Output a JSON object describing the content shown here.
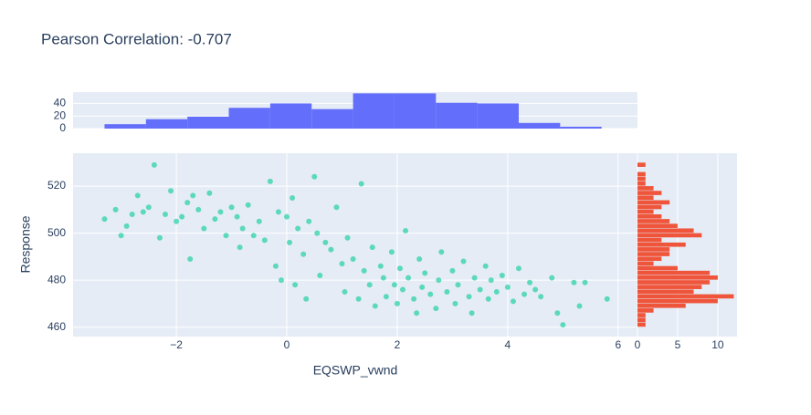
{
  "chart_data": [
    {
      "type": "histogram",
      "orientation": "vertical",
      "color": "#636efa",
      "bins": [
        -3.3,
        -2.55,
        -1.8,
        -1.05,
        -0.3,
        0.45,
        1.2,
        1.95,
        2.7,
        3.45,
        4.2,
        4.95,
        5.7
      ],
      "values": [
        7,
        15,
        19,
        33,
        40,
        31,
        56,
        56,
        41,
        40,
        9,
        3
      ],
      "xlim": [
        -3.87,
        6.35
      ],
      "ylim": [
        0,
        58
      ],
      "yticks": [
        0,
        20,
        40
      ],
      "grid": true
    },
    {
      "type": "scatter",
      "title": "Pearson Correlation: -0.707",
      "xlabel": "EQSWP_vwnd",
      "ylabel": "Response",
      "color": "#00cc96",
      "x": [
        -3.3,
        -3.1,
        -3.0,
        -2.9,
        -2.8,
        -2.7,
        -2.6,
        -2.5,
        -2.4,
        -2.3,
        -2.2,
        -2.1,
        -2.0,
        -1.9,
        -1.8,
        -1.75,
        -1.7,
        -1.6,
        -1.5,
        -1.4,
        -1.3,
        -1.2,
        -1.1,
        -1.0,
        -0.9,
        -0.85,
        -0.8,
        -0.7,
        -0.6,
        -0.5,
        -0.4,
        -0.3,
        -0.2,
        -0.15,
        -0.1,
        0,
        0.05,
        0.1,
        0.15,
        0.2,
        0.3,
        0.35,
        0.4,
        0.5,
        0.55,
        0.6,
        0.7,
        0.8,
        0.9,
        1.0,
        1.05,
        1.1,
        1.2,
        1.3,
        1.35,
        1.4,
        1.5,
        1.55,
        1.6,
        1.7,
        1.75,
        1.8,
        1.9,
        1.95,
        2.0,
        2.05,
        2.1,
        2.15,
        2.2,
        2.3,
        2.35,
        2.4,
        2.45,
        2.5,
        2.6,
        2.7,
        2.75,
        2.8,
        2.9,
        3.0,
        3.05,
        3.1,
        3.2,
        3.3,
        3.35,
        3.4,
        3.5,
        3.6,
        3.65,
        3.7,
        3.8,
        3.9,
        4.0,
        4.1,
        4.2,
        4.3,
        4.4,
        4.5,
        4.6,
        4.8,
        4.9,
        5.0,
        5.2,
        5.3,
        5.4,
        5.8
      ],
      "y": [
        506,
        510,
        499,
        503,
        508,
        516,
        509,
        511,
        529,
        498,
        508,
        518,
        505,
        507,
        513,
        489,
        516,
        510,
        502,
        517,
        506,
        509,
        499,
        511,
        507,
        494,
        502,
        512,
        499,
        505,
        497,
        522,
        486,
        509,
        480,
        507,
        496,
        515,
        478,
        502,
        491,
        472,
        505,
        524,
        500,
        482,
        496,
        493,
        511,
        487,
        475,
        498,
        489,
        472,
        521,
        484,
        478,
        494,
        469,
        486,
        481,
        473,
        492,
        478,
        470,
        485,
        476,
        501,
        481,
        472,
        466,
        489,
        477,
        483,
        474,
        468,
        480,
        492,
        475,
        484,
        470,
        478,
        488,
        473,
        466,
        481,
        476,
        486,
        472,
        480,
        475,
        482,
        477,
        471,
        485,
        474,
        479,
        476,
        473,
        481,
        466,
        461,
        479,
        469,
        479,
        472
      ],
      "xlim": [
        -3.87,
        6.35
      ],
      "ylim": [
        456,
        534
      ],
      "xticks": [
        {
          "value": -2,
          "label": "−2"
        },
        0,
        2,
        4,
        6
      ],
      "yticks": [
        460,
        480,
        500,
        520
      ],
      "grid": true
    },
    {
      "type": "histogram",
      "orientation": "horizontal",
      "color": "#ef553b",
      "bins": [
        460,
        462,
        464,
        466,
        468,
        470,
        472,
        474,
        476,
        478,
        480,
        482,
        484,
        486,
        488,
        490,
        492,
        494,
        496,
        498,
        500,
        502,
        504,
        506,
        508,
        510,
        512,
        514,
        516,
        518,
        520,
        522,
        524,
        526,
        528,
        530
      ],
      "values": [
        1,
        1,
        1,
        2,
        6,
        10,
        12,
        7,
        8,
        9,
        10,
        9,
        5,
        2,
        3,
        4,
        4,
        6,
        3,
        8,
        7,
        5,
        4,
        3,
        2,
        3,
        4,
        2,
        3,
        2,
        1,
        1,
        1,
        0,
        1
      ],
      "xlim": [
        0,
        12.4
      ],
      "ylim": [
        456,
        534
      ],
      "xticks": [
        0,
        5,
        10
      ],
      "grid": true
    }
  ]
}
